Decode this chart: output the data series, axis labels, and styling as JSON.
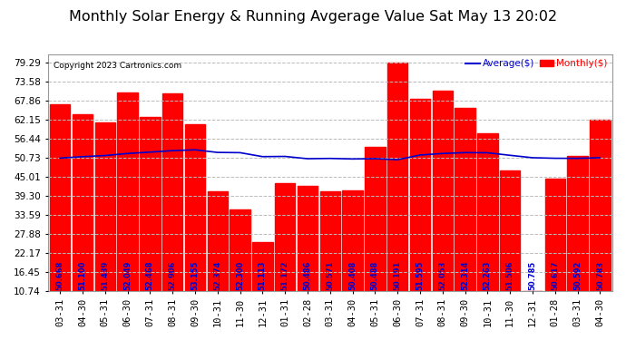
{
  "title": "Monthly Solar Energy & Running Avgerage Value Sat May 13 20:02",
  "copyright": "Copyright 2023 Cartronics.com",
  "legend_avg": "Average($)",
  "legend_monthly": "Monthly($)",
  "categories": [
    "03-31",
    "04-30",
    "05-31",
    "06-30",
    "07-31",
    "08-31",
    "09-30",
    "10-31",
    "11-30",
    "12-31",
    "01-31",
    "02-28",
    "03-31",
    "04-30",
    "05-31",
    "06-30",
    "07-31",
    "08-31",
    "09-30",
    "10-31",
    "11-30",
    "12-31",
    "01-28",
    "03-31",
    "04-30"
  ],
  "bar_values": [
    66.86,
    63.95,
    61.26,
    70.35,
    63.0,
    70.09,
    60.84,
    40.73,
    35.2,
    25.48,
    43.27,
    42.4,
    40.8,
    41.0,
    54.0,
    79.29,
    68.5,
    70.98,
    65.68,
    58.1,
    46.84,
    10.74,
    44.4,
    51.21,
    62.15
  ],
  "avg_values": [
    50.668,
    51.1,
    51.439,
    52.049,
    52.468,
    52.906,
    53.155,
    52.374,
    52.3,
    51.113,
    51.172,
    50.486,
    50.571,
    50.408,
    50.488,
    50.191,
    51.595,
    52.053,
    52.314,
    52.263,
    51.506,
    50.785,
    50.617,
    50.592,
    50.783
  ],
  "bar_color": "#ff0000",
  "avg_color": "#0000cc",
  "label_color": "#0000cc",
  "background_color": "#ffffff",
  "grid_color": "#bbbbbb",
  "yticks": [
    10.74,
    16.45,
    22.17,
    27.88,
    33.59,
    39.3,
    45.01,
    50.73,
    56.44,
    62.15,
    67.86,
    73.58,
    79.29
  ],
  "ymin": 10.74,
  "ymax": 79.29,
  "title_fontsize": 11.5,
  "tick_fontsize": 7.5,
  "label_fontsize": 6.0,
  "figwidth": 6.9,
  "figheight": 3.75,
  "dpi": 100
}
